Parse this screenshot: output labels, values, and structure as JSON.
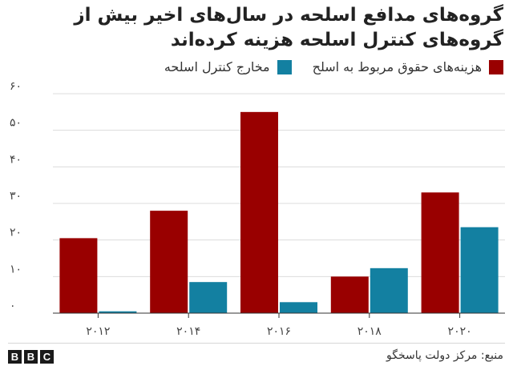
{
  "chart_data": {
    "type": "bar",
    "title": "گروه‌های مدافع اسلحه در سال‌های اخیر بیش از گروه‌های کنترل اسلحه هزینه کرده‌اند",
    "categories": [
      "۲۰۱۲",
      "۲۰۱۴",
      "۲۰۱۶",
      "۲۰۱۸",
      "۲۰۲۰"
    ],
    "series": [
      {
        "name": "هزینه‌های حقوق مربوط به اسلح",
        "color": "#990000",
        "values": [
          20.5,
          28,
          55,
          10,
          33
        ]
      },
      {
        "name": "مخارج کنترل اسلحه",
        "color": "#1380a1",
        "values": [
          0.5,
          8.5,
          3,
          12.3,
          23.5
        ]
      }
    ],
    "y_ticks": [
      {
        "value": 0,
        "label": "۰"
      },
      {
        "value": 10,
        "label": "۱۰"
      },
      {
        "value": 20,
        "label": "۲۰"
      },
      {
        "value": 30,
        "label": "۳۰"
      },
      {
        "value": 40,
        "label": "۴۰"
      },
      {
        "value": 50,
        "label": "۵۰"
      },
      {
        "value": 60,
        "label": "۶۰"
      }
    ],
    "ylim": [
      0,
      60
    ],
    "grid": true,
    "legend_position": "top"
  },
  "footer": {
    "logo": [
      "B",
      "B",
      "C"
    ],
    "source": "منبع: مرکز دولت پاسخگو"
  }
}
